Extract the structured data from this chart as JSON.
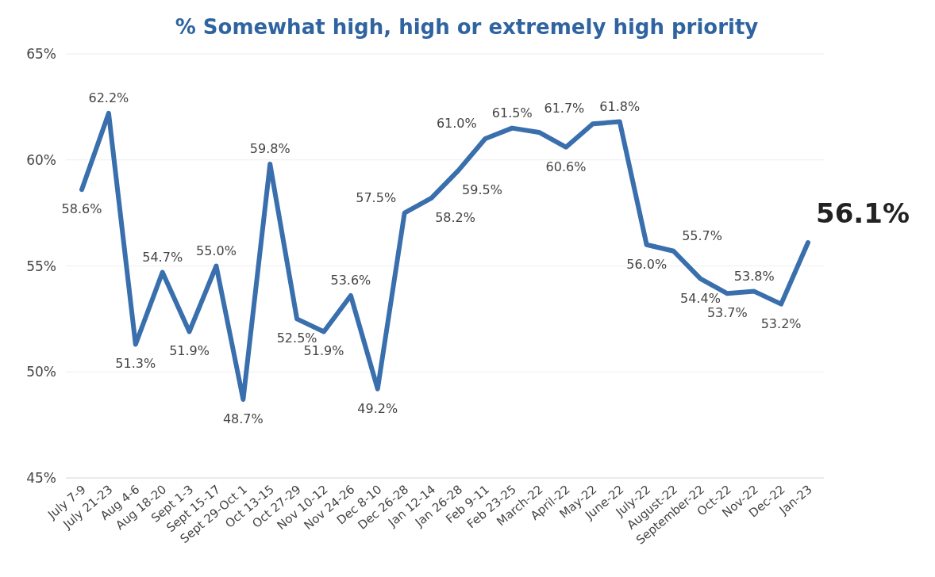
{
  "chart_data": {
    "type": "line",
    "title": "% Somewhat high, high or extremely high priority",
    "categories": [
      "July 7-9",
      "July 21-23",
      "Aug 4-6",
      "Aug 18-20",
      "Sept 1-3",
      "Sept 15-17",
      "Sept 29-Oct 1",
      "Oct 13-15",
      "Oct 27-29",
      "Nov 10-12",
      "Nov 24-26",
      "Dec 8-10",
      "Dec 26-28",
      "Jan 12-14",
      "Jan 26-28",
      "Feb 9-11",
      "Feb 23-25",
      "March-22",
      "April-22",
      "May-22",
      "June-22",
      "July-22",
      "August-22",
      "September-22",
      "Oct-22",
      "Nov-22",
      "Dec-22",
      "Jan-23"
    ],
    "series": [
      {
        "color": "#3a6fad",
        "values": [
          58.6,
          62.2,
          51.3,
          54.7,
          51.9,
          55.0,
          48.7,
          59.8,
          52.5,
          51.9,
          53.6,
          49.2,
          57.5,
          58.2,
          59.5,
          61.0,
          61.5,
          61.3,
          60.6,
          61.7,
          61.8,
          56.0,
          55.7,
          54.4,
          53.7,
          53.8,
          53.2,
          56.1
        ],
        "value_labels": [
          "58.6%",
          "62.2%",
          "51.3%",
          "54.7%",
          "51.9%",
          "55.0%",
          "48.7%",
          "59.8%",
          "52.5%",
          "51.9%",
          "53.6%",
          "49.2%",
          "57.5%",
          "58.2%",
          "59.5%",
          "61.0%",
          "61.5%",
          null,
          "60.6%",
          "61.7%",
          "61.8%",
          "56.0%",
          "55.7%",
          "54.4%",
          "53.7%",
          "53.8%",
          "53.2%",
          "56.1%"
        ]
      }
    ],
    "ylim": [
      45,
      65
    ],
    "yticks": [
      {
        "value": 45,
        "label": "45%"
      },
      {
        "value": 50,
        "label": "50%"
      },
      {
        "value": 55,
        "label": "55%"
      },
      {
        "value": 60,
        "label": "60%"
      },
      {
        "value": 65,
        "label": "65%"
      }
    ],
    "grid": "y",
    "marker": "none",
    "line_style": "solid"
  }
}
